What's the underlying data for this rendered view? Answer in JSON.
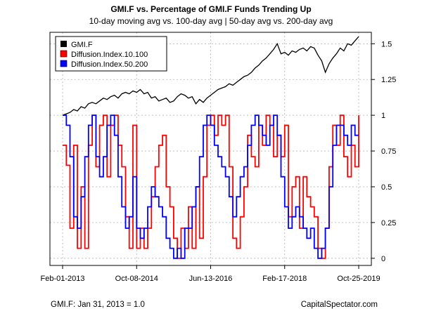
{
  "header": {
    "title": "GMI.F vs. Percentage of GMI.F Funds Trending Up",
    "subtitle": "10-day moving avg vs. 100-day avg | 50-day avg vs. 200-day avg"
  },
  "footer": {
    "left": "GMI.F: Jan 31, 2013 = 1.0",
    "right": "CapitalSpectator.com"
  },
  "chart_data": {
    "type": "line",
    "title": "GMI.F vs. Percentage of GMI.F Funds Trending Up",
    "subtitle": "10-day moving avg vs. 100-day avg | 50-day avg vs. 200-day avg",
    "xlim": [
      0,
      81
    ],
    "x_ticks": [
      {
        "x": 0,
        "label": "Feb-01-2013"
      },
      {
        "x": 20,
        "label": "Oct-08-2014"
      },
      {
        "x": 40,
        "label": "Jun-13-2016"
      },
      {
        "x": 60,
        "label": "Feb-17-2018"
      },
      {
        "x": 80,
        "label": "Oct-25-2019"
      }
    ],
    "right_axis": {
      "ylim": [
        -0.05,
        1.58
      ],
      "ticks": [
        {
          "v": 0,
          "label": "0"
        },
        {
          "v": 0.25,
          "label": "0.25"
        },
        {
          "v": 0.5,
          "label": "0.5"
        },
        {
          "v": 0.75,
          "label": "0.75"
        },
        {
          "v": 1.0,
          "label": "1"
        },
        {
          "v": 1.25,
          "label": "1.25"
        },
        {
          "v": 1.5,
          "label": "1.5"
        }
      ]
    },
    "grid": true,
    "legend": "top-left",
    "series": [
      {
        "name": "GMI.F",
        "color": "#000000",
        "y": [
          1.0,
          1.01,
          1.02,
          1.04,
          1.03,
          1.06,
          1.05,
          1.08,
          1.09,
          1.08,
          1.1,
          1.12,
          1.11,
          1.13,
          1.14,
          1.12,
          1.15,
          1.16,
          1.15,
          1.17,
          1.16,
          1.18,
          1.15,
          1.16,
          1.12,
          1.13,
          1.1,
          1.11,
          1.12,
          1.09,
          1.1,
          1.13,
          1.15,
          1.14,
          1.12,
          1.13,
          1.08,
          1.11,
          1.09,
          1.12,
          1.14,
          1.16,
          1.18,
          1.19,
          1.2,
          1.22,
          1.21,
          1.23,
          1.25,
          1.27,
          1.28,
          1.3,
          1.33,
          1.35,
          1.38,
          1.4,
          1.43,
          1.46,
          1.5,
          1.43,
          1.44,
          1.42,
          1.45,
          1.44,
          1.46,
          1.47,
          1.45,
          1.48,
          1.47,
          1.42,
          1.38,
          1.3,
          1.36,
          1.4,
          1.43,
          1.47,
          1.45,
          1.5,
          1.49,
          1.52,
          1.55
        ]
      },
      {
        "name": "Diffusion.Index.10.100",
        "color": "#ff0000",
        "y": [
          0.79,
          0.65,
          0.21,
          0.79,
          0.07,
          0.5,
          0.07,
          0.79,
          1.0,
          0.64,
          0.93,
          1.0,
          0.57,
          0.93,
          1.0,
          0.79,
          0.64,
          0.29,
          0.07,
          0.93,
          0.07,
          0.21,
          0.07,
          0.21,
          0.43,
          0.64,
          0.79,
          0.86,
          0.5,
          0.36,
          0.14,
          0.0,
          0.21,
          0.07,
          0.36,
          0.07,
          0.5,
          0.14,
          0.57,
          0.93,
          1.0,
          0.86,
          1.0,
          0.93,
          1.0,
          0.64,
          0.14,
          0.07,
          0.29,
          0.5,
          0.86,
          0.71,
          0.64,
          0.93,
          0.79,
          1.0,
          0.93,
          0.71,
          0.86,
          0.71,
          0.93,
          0.29,
          0.5,
          0.57,
          0.21,
          0.57,
          0.43,
          0.36,
          0.29,
          0.07,
          0.0,
          0.21,
          0.64,
          0.93,
          0.79,
          1.0,
          0.71,
          0.57,
          0.79,
          0.64,
          1.0
        ]
      },
      {
        "name": "Diffusion.Index.50.200",
        "color": "#0000ff",
        "y": [
          1.0,
          0.93,
          0.71,
          0.29,
          0.21,
          0.43,
          0.71,
          0.93,
          1.0,
          0.71,
          0.57,
          0.71,
          0.93,
          1.0,
          0.86,
          0.57,
          0.36,
          0.21,
          0.29,
          0.57,
          0.21,
          0.14,
          0.21,
          0.36,
          0.5,
          0.43,
          0.36,
          0.29,
          0.14,
          0.07,
          0.0,
          0.07,
          0.0,
          0.21,
          0.21,
          0.36,
          0.5,
          0.71,
          0.93,
          1.0,
          0.93,
          0.79,
          0.71,
          0.64,
          0.57,
          0.43,
          0.29,
          0.43,
          0.57,
          0.64,
          0.79,
          0.93,
          1.0,
          0.93,
          0.86,
          0.79,
          0.93,
          1.0,
          0.86,
          0.57,
          0.36,
          0.21,
          0.29,
          0.36,
          0.29,
          0.21,
          0.14,
          0.21,
          0.07,
          0.0,
          0.07,
          0.21,
          0.5,
          0.79,
          0.93,
          0.93,
          0.86,
          0.79,
          0.93,
          0.86,
          0.86
        ]
      }
    ]
  }
}
